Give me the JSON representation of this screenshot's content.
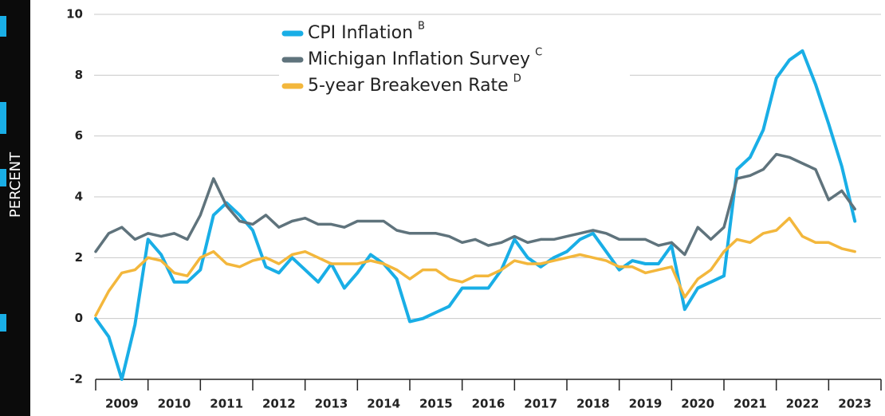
{
  "chart_data": {
    "type": "line",
    "ylabel": "PERCENT",
    "x": [
      2009.0,
      2009.25,
      2009.5,
      2009.75,
      2010.0,
      2010.25,
      2010.5,
      2010.75,
      2011.0,
      2011.25,
      2011.5,
      2011.75,
      2012.0,
      2012.25,
      2012.5,
      2012.75,
      2013.0,
      2013.25,
      2013.5,
      2013.75,
      2014.0,
      2014.25,
      2014.5,
      2014.75,
      2015.0,
      2015.25,
      2015.5,
      2015.75,
      2016.0,
      2016.25,
      2016.5,
      2016.75,
      2017.0,
      2017.25,
      2017.5,
      2017.75,
      2018.0,
      2018.25,
      2018.5,
      2018.75,
      2019.0,
      2019.25,
      2019.5,
      2019.75,
      2020.0,
      2020.25,
      2020.5,
      2020.75,
      2021.0,
      2021.25,
      2021.5,
      2021.75,
      2022.0,
      2022.25,
      2022.5,
      2022.75,
      2023.0,
      2023.25,
      2023.5
    ],
    "series": [
      {
        "name": "CPI Inflation",
        "footnote": "B",
        "color": "#19aee6",
        "values": [
          0.0,
          -0.6,
          -2.0,
          -0.2,
          2.6,
          2.1,
          1.2,
          1.2,
          1.6,
          3.4,
          3.8,
          3.4,
          2.9,
          1.7,
          1.5,
          2.0,
          1.6,
          1.2,
          1.8,
          1.0,
          1.5,
          2.1,
          1.8,
          1.3,
          -0.1,
          0.0,
          0.2,
          0.4,
          1.0,
          1.0,
          1.0,
          1.6,
          2.6,
          2.0,
          1.7,
          2.0,
          2.2,
          2.6,
          2.8,
          2.2,
          1.6,
          1.9,
          1.8,
          1.8,
          2.4,
          0.3,
          1.0,
          1.2,
          1.4,
          4.9,
          5.3,
          6.2,
          7.9,
          8.5,
          8.8,
          7.7,
          6.4,
          5.0,
          3.2
        ]
      },
      {
        "name": "Michigan Inflation Survey",
        "footnote": "C",
        "color": "#5f737c",
        "values": [
          2.2,
          2.8,
          3.0,
          2.6,
          2.8,
          2.7,
          2.8,
          2.6,
          3.4,
          4.6,
          3.7,
          3.2,
          3.1,
          3.4,
          3.0,
          3.2,
          3.3,
          3.1,
          3.1,
          3.0,
          3.2,
          3.2,
          3.2,
          2.9,
          2.8,
          2.8,
          2.8,
          2.7,
          2.5,
          2.6,
          2.4,
          2.5,
          2.7,
          2.5,
          2.6,
          2.6,
          2.7,
          2.8,
          2.9,
          2.8,
          2.6,
          2.6,
          2.6,
          2.4,
          2.5,
          2.1,
          3.0,
          2.6,
          3.0,
          4.6,
          4.7,
          4.9,
          5.4,
          5.3,
          5.1,
          4.9,
          3.9,
          4.2,
          3.6
        ]
      },
      {
        "name": "5-year Breakeven Rate",
        "footnote": "D",
        "color": "#f3b73c",
        "values": [
          0.1,
          0.9,
          1.5,
          1.6,
          2.0,
          1.9,
          1.5,
          1.4,
          2.0,
          2.2,
          1.8,
          1.7,
          1.9,
          2.0,
          1.8,
          2.1,
          2.2,
          2.0,
          1.8,
          1.8,
          1.8,
          1.9,
          1.8,
          1.6,
          1.3,
          1.6,
          1.6,
          1.3,
          1.2,
          1.4,
          1.4,
          1.6,
          1.9,
          1.8,
          1.8,
          1.9,
          2.0,
          2.1,
          2.0,
          1.9,
          1.7,
          1.7,
          1.5,
          1.6,
          1.7,
          0.7,
          1.3,
          1.6,
          2.2,
          2.6,
          2.5,
          2.8,
          2.9,
          3.3,
          2.7,
          2.5,
          2.5,
          2.3,
          2.2
        ]
      }
    ],
    "xlim": [
      2009,
      2024
    ],
    "xticks": [
      2009,
      2010,
      2011,
      2012,
      2013,
      2014,
      2015,
      2016,
      2017,
      2018,
      2019,
      2020,
      2021,
      2022,
      2023,
      2024
    ],
    "year_labels": [
      2009,
      2010,
      2011,
      2012,
      2013,
      2014,
      2015,
      2016,
      2017,
      2018,
      2019,
      2020,
      2021,
      2022,
      2023
    ],
    "ylim": [
      -2,
      10
    ],
    "yticks": [
      -2,
      0,
      2,
      4,
      6,
      8,
      10
    ],
    "grid": true,
    "legend": "top"
  }
}
